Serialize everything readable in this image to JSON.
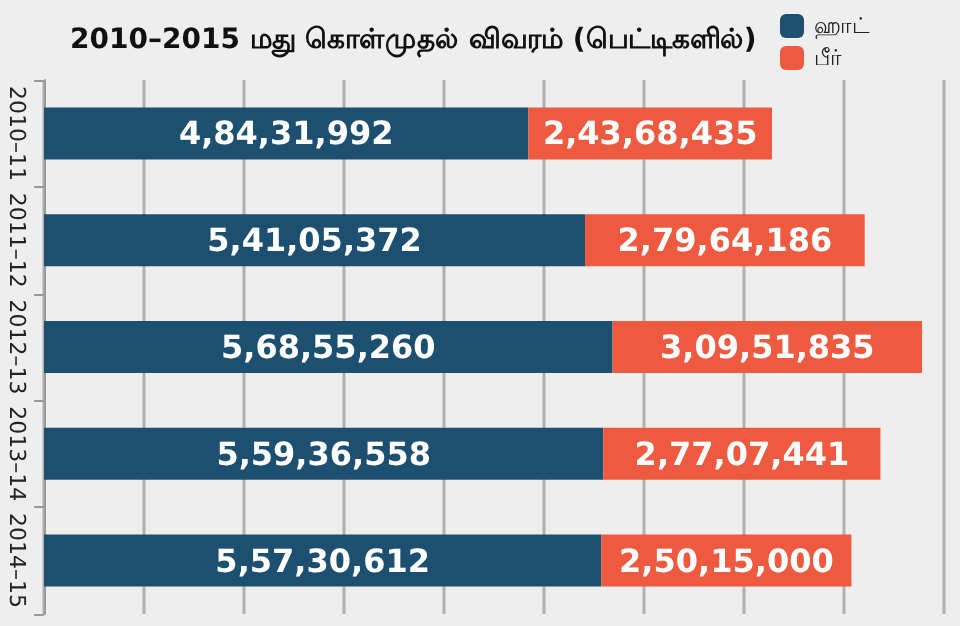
{
  "chart_data": {
    "type": "bar",
    "orientation": "horizontal",
    "stacked": true,
    "title": "2010–2015 மது கொள்முதல் விவரம் (பெட்டிகளில்)",
    "categories": [
      "2010–11",
      "2011–12",
      "2012–13",
      "2013–14",
      "2014–15"
    ],
    "series": [
      {
        "name": "ஹாட்",
        "color": "#1d5070",
        "values": [
          48431992,
          54105372,
          56855260,
          55936558,
          55730612
        ],
        "value_labels": [
          "4,84,31,992",
          "5,41,05,372",
          "5,68,55,260",
          "5,59,36,558",
          "5,57,30,612"
        ]
      },
      {
        "name": "பீர்",
        "color": "#ee5a3f",
        "values": [
          24368435,
          27964186,
          30951835,
          27707441,
          25015000
        ],
        "value_labels": [
          "2,43,68,435",
          "2,79,64,186",
          "3,09,51,835",
          "2,77,07,441",
          "2,50,15,000"
        ]
      }
    ],
    "xlim": [
      0,
      90000000
    ],
    "xticks": [
      {
        "value": 0,
        "label": null
      },
      {
        "value": 10000000,
        "label": null
      },
      {
        "value": 20000000,
        "label": null
      },
      {
        "value": 30000000,
        "label": null
      },
      {
        "value": 40000000,
        "label": null
      },
      {
        "value": 50000000,
        "label": null
      },
      {
        "value": 60000000,
        "label": null
      },
      {
        "value": 70000000,
        "label": null
      },
      {
        "value": 80000000,
        "label": null
      },
      {
        "value": 90000000,
        "label": null
      }
    ],
    "tick_labels": "y",
    "grid": "x",
    "legend": "top right"
  }
}
